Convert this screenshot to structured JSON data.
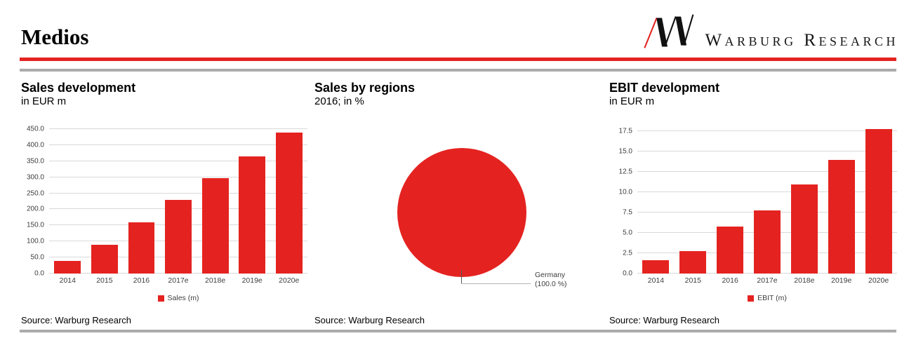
{
  "header": {
    "title": "Medios",
    "brand": "Warburg Research",
    "logo_icon": "warburg-w-logo"
  },
  "colors": {
    "accent_red": "#e42320",
    "rule_gray": "#ababab",
    "gridline": "#d9d9d9",
    "axis_text": "#3d3d3d",
    "callout_line": "#b3b3b3"
  },
  "chart_data": [
    {
      "type": "bar",
      "title": "Sales development",
      "subtitle": "in EUR m",
      "categories": [
        "2014",
        "2015",
        "2016",
        "2017e",
        "2018e",
        "2019e",
        "2020e"
      ],
      "values": [
        40,
        90,
        160,
        230,
        298,
        365,
        440
      ],
      "legend": "Sales (m)",
      "legend_position": "bottom",
      "xlabel": "",
      "ylabel": "",
      "ylim": [
        0,
        450
      ],
      "yticks": [
        "0.0",
        "50.0",
        "100.0",
        "150.0",
        "200.0",
        "250.0",
        "300.0",
        "350.0",
        "400.0",
        "450.0"
      ],
      "grid": true,
      "bar_color": "#e42320",
      "source": "Source: Warburg Research"
    },
    {
      "type": "pie",
      "title": "Sales by regions",
      "subtitle": "2016; in %",
      "labels": [
        "Germany"
      ],
      "values": [
        100.0
      ],
      "slice_color": "#e42320",
      "callout": {
        "label": "Germany",
        "value": "(100.0 %)"
      },
      "source": "Source: Warburg Research"
    },
    {
      "type": "bar",
      "title": "EBIT development",
      "subtitle": "in EUR m",
      "categories": [
        "2014",
        "2015",
        "2016",
        "2017e",
        "2018e",
        "2019e",
        "2020e"
      ],
      "values": [
        1.6,
        2.8,
        5.8,
        7.8,
        11.0,
        14.0,
        17.8
      ],
      "legend": "EBIT (m)",
      "legend_position": "bottom",
      "xlabel": "",
      "ylabel": "",
      "ylim": [
        0,
        17.8
      ],
      "yticks": [
        "0.0",
        "2.5",
        "5.0",
        "7.5",
        "10.0",
        "12.5",
        "15.0",
        "17.5"
      ],
      "grid": true,
      "bar_color": "#e42320",
      "source": "Source: Warburg Research"
    }
  ]
}
